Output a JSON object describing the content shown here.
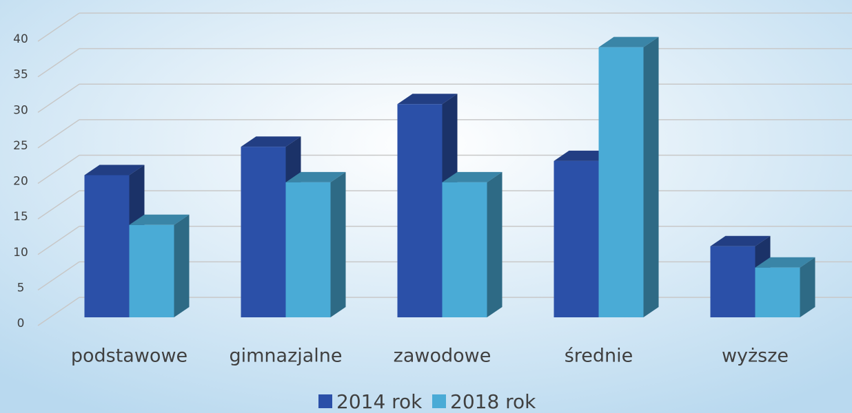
{
  "chart_data": {
    "type": "bar3d",
    "categories": [
      "podstawowe",
      "gimnazjalne",
      "zawodowe",
      "średnie",
      "wyższe"
    ],
    "series": [
      {
        "name": "2014 rok",
        "color": "#2b50a8",
        "values": [
          20,
          24,
          30,
          22,
          10
        ]
      },
      {
        "name": "2018 rok",
        "color": "#4aabd6",
        "values": [
          13,
          19,
          19,
          38,
          7
        ]
      }
    ],
    "ylim": [
      0,
      40
    ],
    "yticks": [
      0,
      5,
      10,
      15,
      20,
      25,
      30,
      35,
      40
    ],
    "grid": true,
    "legend": "bottom"
  }
}
